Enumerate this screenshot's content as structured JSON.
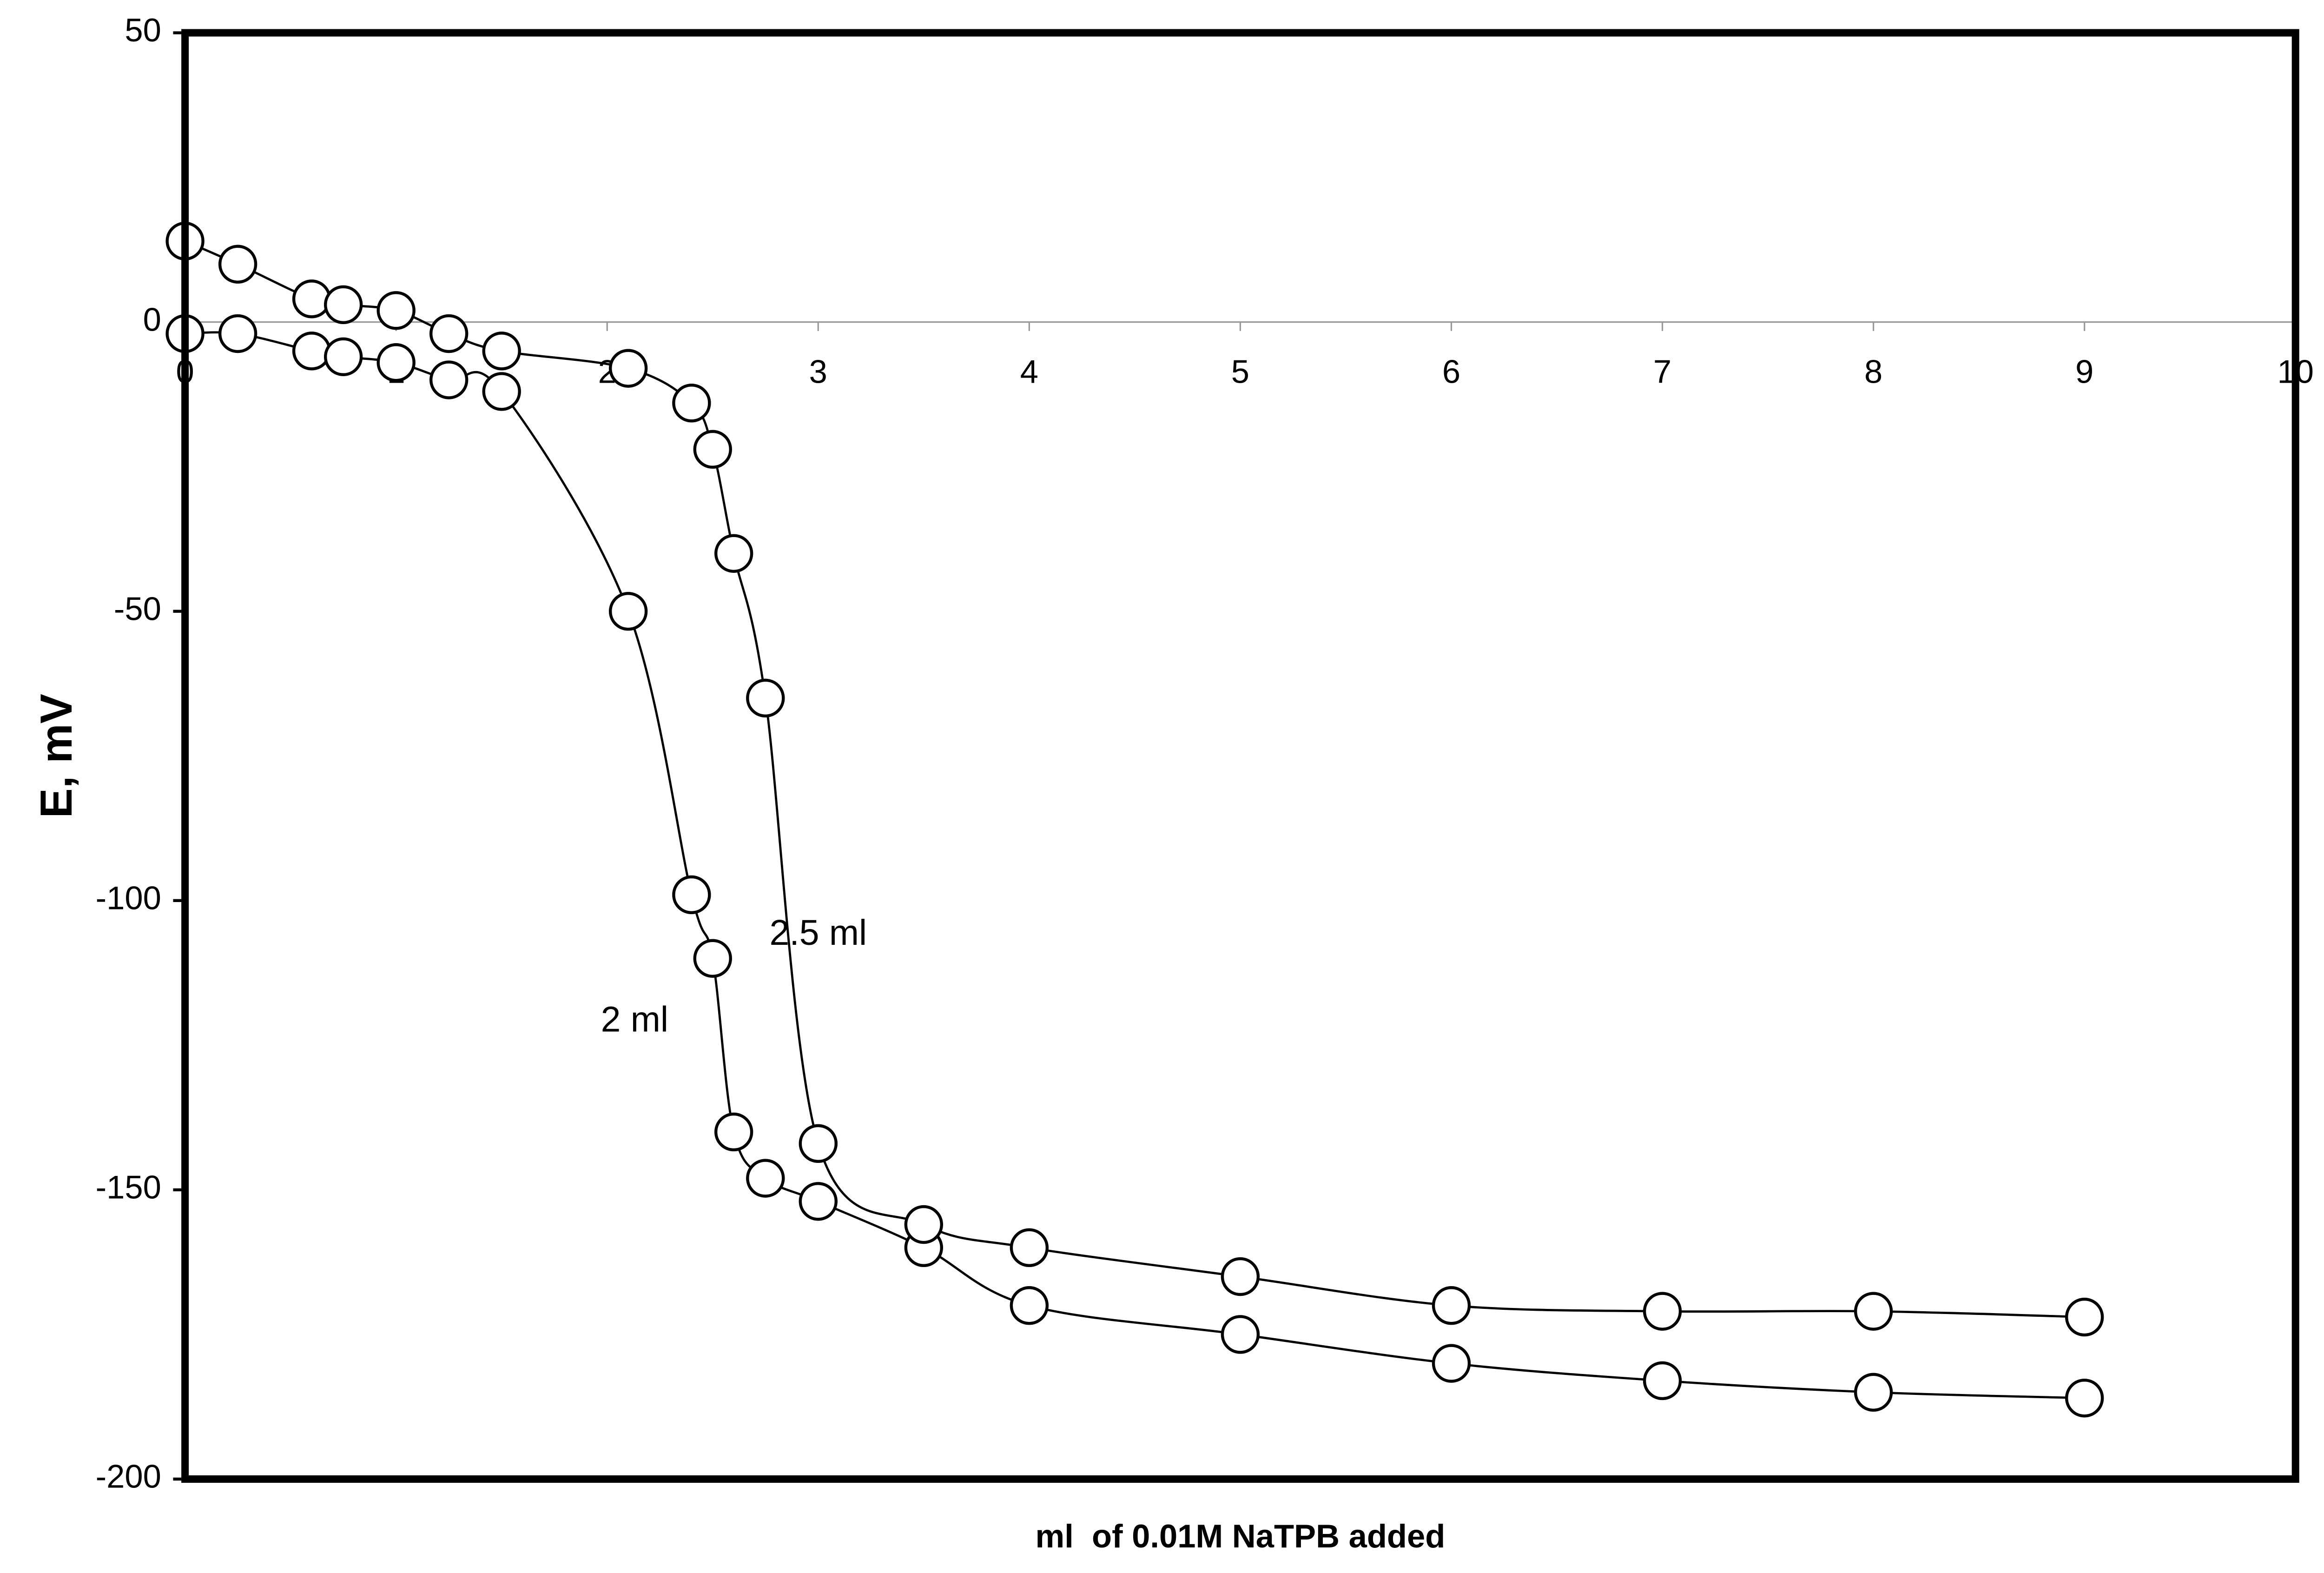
{
  "chart_data": {
    "type": "line",
    "x_label": "ml  of 0.01M NaTPB added",
    "y_label": "E, mV",
    "xlim": [
      0,
      10
    ],
    "xticks": [
      0,
      1,
      2,
      3,
      4,
      5,
      6,
      7,
      8,
      9,
      10
    ],
    "ylim": [
      -200,
      50
    ],
    "yticks": [
      -200,
      -150,
      -100,
      -50,
      0,
      50
    ],
    "series": [
      {
        "color": "#000000",
        "x": [
          0,
          0.25,
          0.6,
          0.75,
          1.0,
          1.25,
          1.5,
          2.1,
          2.4,
          2.5,
          2.6,
          2.75,
          3.0,
          3.5,
          4,
          5,
          6,
          7,
          8,
          9
        ],
        "values": [
          -2,
          -2,
          -5,
          -6,
          -7,
          -10,
          -12,
          -50,
          -99,
          -110,
          -140,
          -148,
          -152,
          -160,
          -170,
          -175,
          -180,
          -183,
          -185,
          -186
        ]
      },
      {
        "color": "#000000",
        "x": [
          0,
          0.25,
          0.6,
          0.75,
          1.0,
          1.25,
          1.5,
          2.1,
          2.4,
          2.5,
          2.6,
          2.75,
          3.0,
          3.5,
          4,
          5,
          6,
          7,
          8,
          9
        ],
        "values": [
          14,
          10,
          4,
          3,
          2,
          -2,
          -5,
          -8,
          -14,
          -22,
          -40,
          -65,
          -142,
          -156,
          -160,
          -165,
          -170,
          -171,
          -171,
          -172
        ]
      }
    ],
    "annotations": [
      {
        "text": "2 ml",
        "x": 2.13,
        "y": -121
      },
      {
        "text": "2.5 ml",
        "x": 3.0,
        "y": -106
      }
    ]
  }
}
